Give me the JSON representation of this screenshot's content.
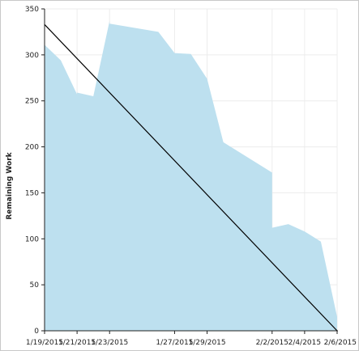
{
  "chart_data": {
    "type": "area",
    "ylabel": "Remaining Work",
    "xlabel": "",
    "title": "",
    "ylim": [
      0,
      350
    ],
    "y_ticks": [
      0,
      50,
      100,
      150,
      200,
      250,
      300,
      350
    ],
    "x_range": [
      "2015-01-19",
      "2015-02-06"
    ],
    "x_tick_labels": [
      "1/19/2015",
      "1/21/2015",
      "1/23/2015",
      "1/27/2015",
      "1/29/2015",
      "2/2/2015",
      "2/4/2015",
      "2/6/2015"
    ],
    "x_tick_dates": [
      "2015-01-19",
      "2015-01-21",
      "2015-01-23",
      "2015-01-27",
      "2015-01-29",
      "2015-02-02",
      "2015-02-04",
      "2015-02-06"
    ],
    "grid": true,
    "series": [
      {
        "kind": "area",
        "color": "#bde0ef",
        "points": [
          {
            "x": "2015-01-19",
            "y": 311
          },
          {
            "x": "2015-01-20",
            "y": 294
          },
          {
            "x": "2015-01-21",
            "y": 257
          },
          {
            "x": "2015-01-21",
            "y": 259
          },
          {
            "x": "2015-01-22",
            "y": 255
          },
          {
            "x": "2015-01-23",
            "y": 337
          },
          {
            "x": "2015-01-23",
            "y": 334
          },
          {
            "x": "2015-01-26",
            "y": 325
          },
          {
            "x": "2015-01-27",
            "y": 302
          },
          {
            "x": "2015-01-28",
            "y": 301
          },
          {
            "x": "2015-01-29",
            "y": 274
          },
          {
            "x": "2015-01-30",
            "y": 205
          },
          {
            "x": "2015-02-02",
            "y": 172
          },
          {
            "x": "2015-02-02",
            "y": 112
          },
          {
            "x": "2015-02-03",
            "y": 116
          },
          {
            "x": "2015-02-04",
            "y": 108
          },
          {
            "x": "2015-02-05",
            "y": 97
          },
          {
            "x": "2015-02-06",
            "y": 15
          }
        ]
      },
      {
        "kind": "line",
        "color": "#000000",
        "points": [
          {
            "x": "2015-01-19",
            "y": 333
          },
          {
            "x": "2015-02-06",
            "y": 0
          }
        ]
      }
    ]
  }
}
